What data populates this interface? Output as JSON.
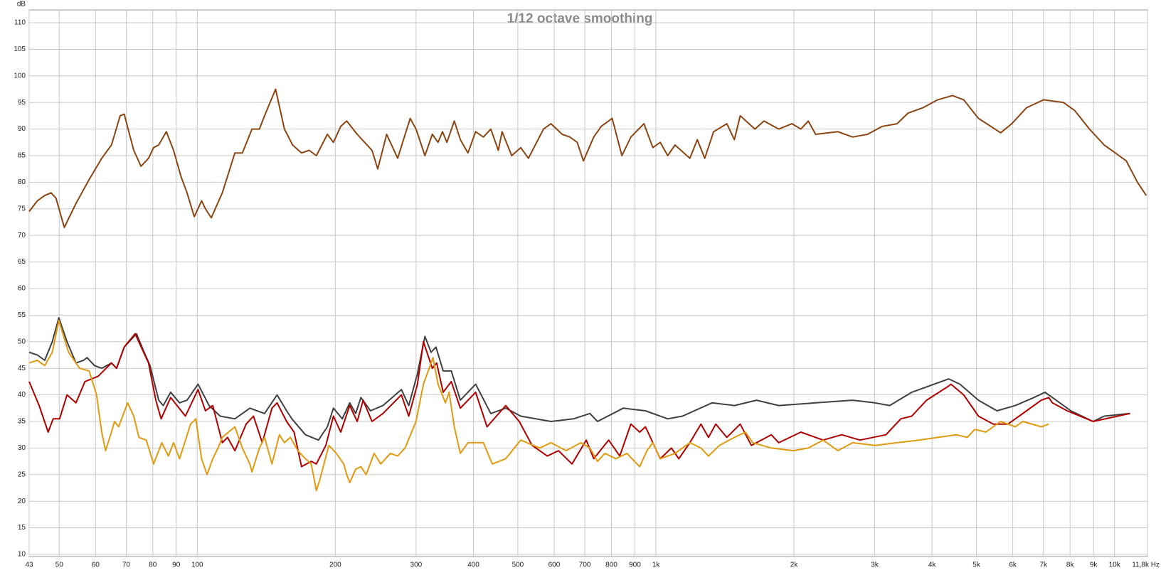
{
  "chart_data": {
    "type": "line",
    "title": "1/12 octave smoothing",
    "y_label": "dB",
    "log_x": true,
    "grid": true,
    "xlim": [
      43,
      11800
    ],
    "ylim": [
      9.6,
      112.4
    ],
    "xticks": [
      43,
      50,
      60,
      70,
      80,
      90,
      100,
      200,
      300,
      400,
      500,
      600,
      700,
      800,
      900,
      {
        "value": 1000,
        "label": "1k"
      },
      {
        "value": 2000,
        "label": "2k"
      },
      {
        "value": 3000,
        "label": "3k"
      },
      {
        "value": 4000,
        "label": "4k"
      },
      {
        "value": 5000,
        "label": "5k"
      },
      {
        "value": 6000,
        "label": "6k"
      },
      {
        "value": 7000,
        "label": "7k"
      },
      {
        "value": 8000,
        "label": "8k"
      },
      {
        "value": 9000,
        "label": "9k"
      },
      {
        "value": 10000,
        "label": "10k"
      },
      {
        "value": 11800,
        "label": "11,8k Hz"
      }
    ],
    "yticks": [
      10,
      15,
      20,
      25,
      30,
      35,
      40,
      45,
      50,
      55,
      60,
      65,
      70,
      75,
      80,
      85,
      90,
      95,
      100,
      105,
      110
    ],
    "series": [
      {
        "color": "#8b4513",
        "x": [
          43,
          44.8,
          46.5,
          48,
          49.2,
          51.3,
          54.4,
          58.1,
          61.9,
          65,
          67.9,
          69.3,
          72.7,
          75.4,
          78.3,
          80.3,
          82.4,
          85.6,
          88.8,
          92.2,
          95,
          98.5,
          102.2,
          104.2,
          107.3,
          113.4,
          120.8,
          125.4,
          131.6,
          136.6,
          140.2,
          148.2,
          154.9,
          161.4,
          168.8,
          175.4,
          181.8,
          192.2,
          198.1,
          205.5,
          211.8,
          223.2,
          240.4,
          247.5,
          258.8,
          273.5,
          291.3,
          299.9,
          313.6,
          325.5,
          335,
          342.5,
          350.2,
          363.5,
          374.6,
          389.3,
          404.6,
          420.6,
          436.6,
          453.3,
          462,
          484.9,
          507.4,
          527.3,
          568.8,
          590.6,
          625.1,
          649.1,
          673.7,
          695,
          732,
          760,
          803,
          843,
          882,
          942,
          985,
          1022,
          1061,
          1101,
          1186,
          1231,
          1278,
          1336,
          1428,
          1483,
          1527,
          1645,
          1720,
          1853,
          1981,
          2071,
          2149,
          2230,
          2494,
          2685,
          2893,
          3116,
          3356,
          3548,
          3822,
          4116,
          4434,
          4688,
          5050,
          5645,
          5969,
          6429,
          7003,
          7739,
          8186,
          8816,
          9493,
          10040,
          10610,
          11220,
          11730
        ],
        "values": [
          74.5,
          76.5,
          77.5,
          78,
          77,
          71.5,
          76,
          80.5,
          84.5,
          87,
          92.5,
          92.8,
          86,
          83,
          84.5,
          86.5,
          87,
          89.5,
          86,
          81,
          78,
          73.5,
          76.5,
          75,
          73.3,
          78,
          85.5,
          85.5,
          90,
          90,
          92.5,
          97.5,
          90,
          87,
          85.5,
          86,
          85,
          89,
          87.5,
          90.5,
          91.5,
          89,
          86,
          82.5,
          89,
          84.5,
          92,
          90,
          85,
          89,
          87.5,
          89.5,
          87.5,
          91.5,
          88,
          85.5,
          89.5,
          88.5,
          90,
          86,
          89.5,
          85,
          86.5,
          84.5,
          90,
          91,
          89,
          88.5,
          87.5,
          84,
          88.5,
          90.5,
          92,
          85,
          88.5,
          91,
          86.5,
          87.5,
          85,
          87,
          84.5,
          88,
          84.5,
          89.5,
          91,
          88,
          92.5,
          90,
          91.5,
          90,
          91,
          90,
          91.5,
          89,
          89.5,
          88.5,
          89,
          90.5,
          91,
          93,
          94,
          95.5,
          96.3,
          95.5,
          92,
          89.3,
          91,
          94,
          95.5,
          95,
          93.5,
          90,
          87,
          85.5,
          84,
          80,
          77.5
        ]
      },
      {
        "color": "#404040",
        "x": [
          43,
          44.8,
          46.5,
          48.3,
          49.9,
          52,
          54.4,
          56.5,
          57.5,
          59.7,
          61.9,
          65,
          66.7,
          69.3,
          73.7,
          76.6,
          78.9,
          82.4,
          84.3,
          87.5,
          91.5,
          95,
          100.4,
          106.1,
          112.2,
          120.8,
          130.2,
          140.2,
          149.3,
          156.6,
          160.8,
          172.1,
          183.8,
          192.2,
          198.1,
          207.1,
          215,
          221.5,
          227.4,
          238.6,
          254,
          278.6,
          289.2,
          302.1,
          313.6,
          323.4,
          331.4,
          343.7,
          358,
          374.6,
          404.6,
          436.6,
          470.6,
          507.4,
          590.6,
          661.4,
          718,
          746,
          849,
          949,
          1061,
          1143,
          1326,
          1483,
          1657,
          1853,
          2230,
          2685,
          3002,
          3234,
          3614,
          4042,
          4352,
          4602,
          5050,
          5541,
          6080,
          6672,
          7055,
          7460,
          8033,
          8979,
          9493,
          10810
        ],
        "values": [
          48,
          47.5,
          46.5,
          50,
          54.5,
          50,
          46,
          46.5,
          47,
          45.5,
          45,
          46,
          45,
          49,
          51.5,
          48,
          45.5,
          39,
          38,
          40.5,
          38.5,
          39,
          42,
          38,
          36,
          35.5,
          37.5,
          36.5,
          40,
          37,
          35.5,
          32.5,
          31.5,
          34,
          37.5,
          35.5,
          38.5,
          36.5,
          39.5,
          37,
          38,
          41,
          38,
          44,
          51,
          48,
          49,
          44.5,
          44.5,
          39,
          42,
          36.5,
          37.5,
          36,
          35,
          35.5,
          36.5,
          35,
          37.5,
          37,
          35.5,
          36,
          38.5,
          38,
          39,
          38,
          38.5,
          39,
          38.5,
          38,
          40.5,
          42,
          43,
          42,
          39,
          37,
          38,
          39.5,
          40.5,
          39,
          37,
          35,
          36,
          36.5
        ]
      },
      {
        "color": "#b00000",
        "x": [
          43,
          45.2,
          47.3,
          48.5,
          50.1,
          52,
          54.4,
          56.9,
          60.8,
          65,
          66.7,
          69.3,
          73.2,
          78.3,
          81.2,
          83.4,
          87.5,
          94.2,
          100.4,
          104.2,
          108.1,
          113.4,
          116.4,
          120.8,
          127.8,
          132.6,
          138.6,
          145.5,
          149.3,
          156.6,
          162.6,
          168.8,
          177.2,
          181.8,
          190.7,
          198.1,
          205.5,
          215,
          223.2,
          230,
          240.4,
          254,
          278.6,
          289.2,
          302.1,
          311.3,
          325.5,
          332.6,
          343.7,
          358,
          374.6,
          404.6,
          428.4,
          470.6,
          503.6,
          537.2,
          579.6,
          613.3,
          656.3,
          705,
          732,
          789,
          834,
          882,
          922,
          949,
          1022,
          1081,
          1122,
          1186,
          1254,
          1302,
          1351,
          1428,
          1527,
          1615,
          1785,
          1853,
          2071,
          2315,
          2541,
          2787,
          3174,
          3420,
          3614,
          3893,
          4320,
          4401,
          4688,
          5050,
          5439,
          5858,
          6429,
          6923,
          7188,
          7320,
          7885,
          8979,
          10810
        ],
        "values": [
          42.5,
          38,
          33,
          35.5,
          35.5,
          40,
          38.5,
          42.5,
          43.5,
          46,
          45,
          49,
          51.5,
          46,
          39,
          35.5,
          39.5,
          36,
          41,
          37,
          38,
          31,
          32,
          29.5,
          34.5,
          36,
          31,
          37.5,
          38.5,
          35,
          33,
          26.5,
          27.5,
          27,
          30.5,
          36,
          33,
          38,
          35,
          39,
          35,
          36.5,
          40,
          36,
          42,
          50,
          45,
          46,
          40.5,
          42.5,
          37.5,
          40.5,
          34,
          38,
          35,
          30.5,
          28.5,
          29.5,
          27,
          31.5,
          28,
          31.5,
          28.5,
          34.5,
          33,
          34,
          28,
          30,
          28,
          31,
          34.5,
          32,
          34.5,
          32,
          34.5,
          30.5,
          32.5,
          31,
          33,
          31.5,
          32.5,
          31.5,
          32.5,
          35.5,
          36,
          39,
          41.5,
          42,
          40,
          36,
          34.5,
          34.5,
          37,
          39,
          39.5,
          38.5,
          37,
          35,
          36.5
        ]
      },
      {
        "color": "#e09a10",
        "x": [
          43,
          44.8,
          46.5,
          48.3,
          49.9,
          52.4,
          55.4,
          58.1,
          60.3,
          61.9,
          63.1,
          65,
          66,
          67.4,
          70.5,
          72.7,
          74.6,
          77.4,
          80.3,
          83.7,
          86.5,
          88.8,
          91.5,
          96.7,
          99.3,
          102.2,
          105,
          108.1,
          111,
          113.4,
          120.8,
          125.4,
          130.2,
          131.6,
          136.6,
          140.2,
          145.5,
          151,
          154.9,
          159.6,
          165.7,
          172.1,
          177.2,
          181.8,
          185,
          193.6,
          201,
          208.6,
          211.8,
          215,
          221.5,
          227.4,
          233.5,
          243,
          251.2,
          263.6,
          273.5,
          283.9,
          299.9,
          311.3,
          326.5,
          335,
          347.6,
          354.1,
          363.5,
          374.6,
          389.3,
          420.6,
          439.9,
          470.6,
          507.4,
          558.1,
          590.6,
          636.9,
          686.7,
          718,
          746,
          774,
          818,
          865,
          898,
          922,
          956,
          985,
          1022,
          1101,
          1186,
          1254,
          1302,
          1376,
          1483,
          1567,
          1627,
          1785,
          1995,
          2149,
          2315,
          2494,
          2685,
          3002,
          3356,
          3751,
          4116,
          4517,
          4775,
          4957,
          5241,
          5645,
          6080,
          6310,
          6923,
          7188
        ],
        "values": [
          46,
          46.5,
          45.5,
          48,
          54,
          48,
          45,
          44.5,
          40,
          33,
          29.5,
          33,
          35,
          34,
          38.5,
          36,
          32,
          31.5,
          27,
          31,
          28.5,
          31,
          28,
          34.5,
          35.5,
          28,
          25,
          28,
          30,
          32,
          34,
          30,
          27,
          25.5,
          30,
          32,
          27,
          32.5,
          31,
          32,
          29.5,
          28,
          27,
          22,
          24,
          30.5,
          29,
          27,
          25,
          23.5,
          26,
          26.5,
          25,
          29,
          27,
          29,
          28.5,
          30,
          35,
          42,
          47,
          42,
          38.5,
          40.5,
          34,
          29,
          31,
          31,
          27,
          28,
          31.5,
          30,
          31,
          29.5,
          31,
          30,
          27.5,
          29,
          28,
          29,
          27.5,
          26.5,
          29.5,
          31,
          28,
          29,
          31,
          30,
          28.5,
          30.5,
          32,
          33,
          31,
          30,
          29.5,
          30,
          31.5,
          29.5,
          31,
          30.5,
          31,
          31.5,
          32,
          32.5,
          32,
          33.5,
          33,
          35,
          34,
          35,
          34,
          34.5
        ]
      }
    ]
  }
}
